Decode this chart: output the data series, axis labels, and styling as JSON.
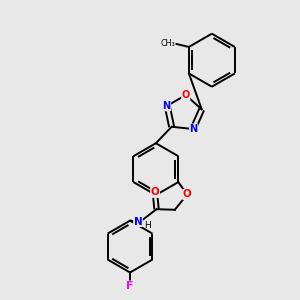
{
  "background_color": "#e8e8e8",
  "bond_color": "#000000",
  "N_color": "#0000ff",
  "O_color": "#ff0000",
  "F_color": "#ff00ff",
  "figsize": [
    3.0,
    3.0
  ],
  "dpi": 100,
  "xlim": [
    0,
    10
  ],
  "ylim": [
    0,
    10
  ]
}
